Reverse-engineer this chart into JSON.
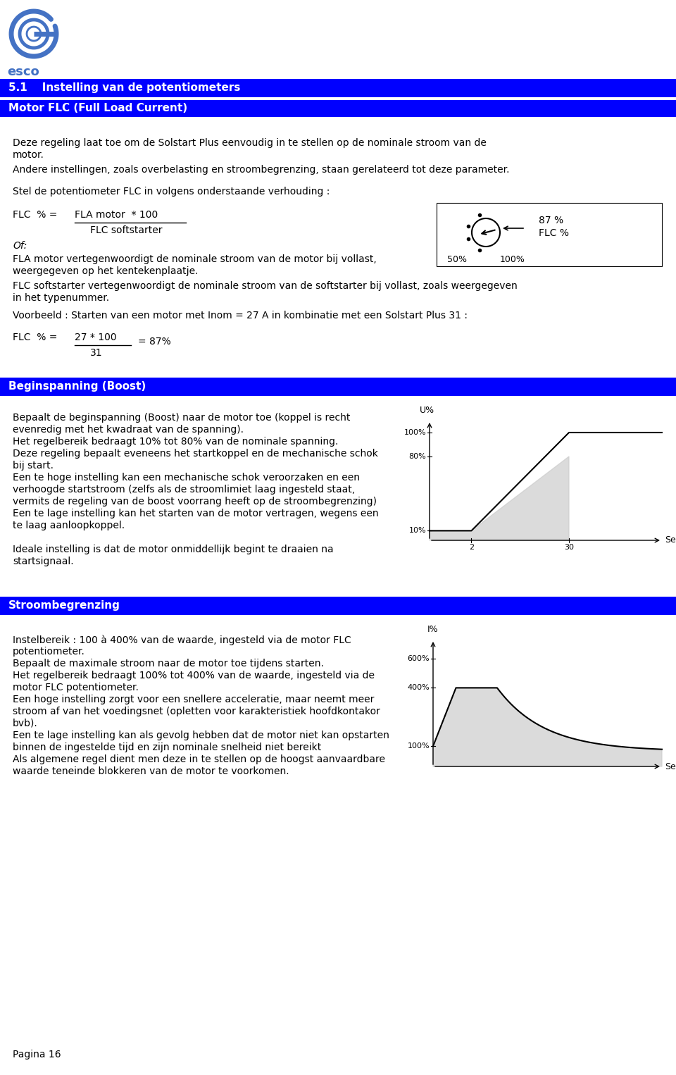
{
  "title_section1": "5.1    Instelling van de potentiometers",
  "subtitle1": "Motor FLC (Full Load Current)",
  "header_color": "#0000FF",
  "body_bg": "#FFFFFF",
  "p1a": "Deze regeling laat toe om de Solstart Plus eenvoudig in te stellen op de nominale stroom van de",
  "p1b": "motor.",
  "p2": "Andere instellingen, zoals overbelasting en stroombegrenzing, staan gerelateerd tot deze parameter.",
  "p3": "Stel de potentiometer FLC in volgens onderstaande verhouding :",
  "formula_num": "FLA motor  * 100",
  "formula_den": "FLC softstarter",
  "formula_of": "Of:",
  "formula_50": "50%",
  "formula_100": "100%",
  "formula_87": "87 %",
  "formula_flc": "FLC %",
  "p4a": "FLA motor vertegenwoordigt de nominale stroom van de motor bij vollast,",
  "p4b": "weergegeven op het kentekenplaatje.",
  "p5a": "FLC softstarter vertegenwoordigt de nominale stroom van de softstarter bij vollast, zoals weergegeven",
  "p5b": "in het typenummer.",
  "p6": "Voorbeeld : Starten van een motor met Inom = 27 A in kombinatie met een Solstart Plus 31 :",
  "ex_num": "27 * 100",
  "ex_den": "31",
  "ex_result": "= 87%",
  "section2_title": "Beginspanning (Boost)",
  "boost_lines": [
    "Bepaalt de beginspanning (Boost) naar de motor toe (koppel is recht",
    "evenredig met het kwadraat van de spanning).",
    "Het regelbereik bedraagt 10% tot 80% van de nominale spanning.",
    "Deze regeling bepaalt eveneens het startkoppel en de mechanische schok",
    "bij start.",
    "Een te hoge instelling kan een mechanische schok veroorzaken en een",
    "verhoogde startstroom (zelfs als de stroomlimiet laag ingesteld staat,",
    "vermits de regeling van de boost voorrang heeft op de stroombegrenzing)",
    "Een te lage instelling kan het starten van de motor vertragen, wegens een",
    "te laag aanloopkoppel.",
    "",
    "Ideale instelling is dat de motor onmiddellijk begint te draaien na",
    "startsignaal."
  ],
  "section3_title": "Stroombegrenzing",
  "strm_lines": [
    "Instelbereik : 100 à 400% van de waarde, ingesteld via de motor FLC",
    "potentiometer.",
    "Bepaalt de maximale stroom naar de motor toe tijdens starten.",
    "Het regelbereik bedraagt 100% tot 400% van de waarde, ingesteld via de",
    "motor FLC potentiometer.",
    "Een hoge instelling zorgt voor een snellere acceleratie, maar neemt meer",
    "stroom af van het voedingsnet (opletten voor karakteristiek hoofdkontakor",
    "bvb).",
    "Een te lage instelling kan als gevolg hebben dat de motor niet kan opstarten",
    "binnen de ingestelde tijd en zijn nominale snelheid niet bereikt",
    "Als algemene regel dient men deze in te stellen op de hoogst aanvaardbare",
    "waarde teneinde blokkeren van de motor te voorkomen."
  ],
  "footer": "Pagina 16",
  "accent_color": "#4472C4",
  "blue_hdr": "#0000EE"
}
